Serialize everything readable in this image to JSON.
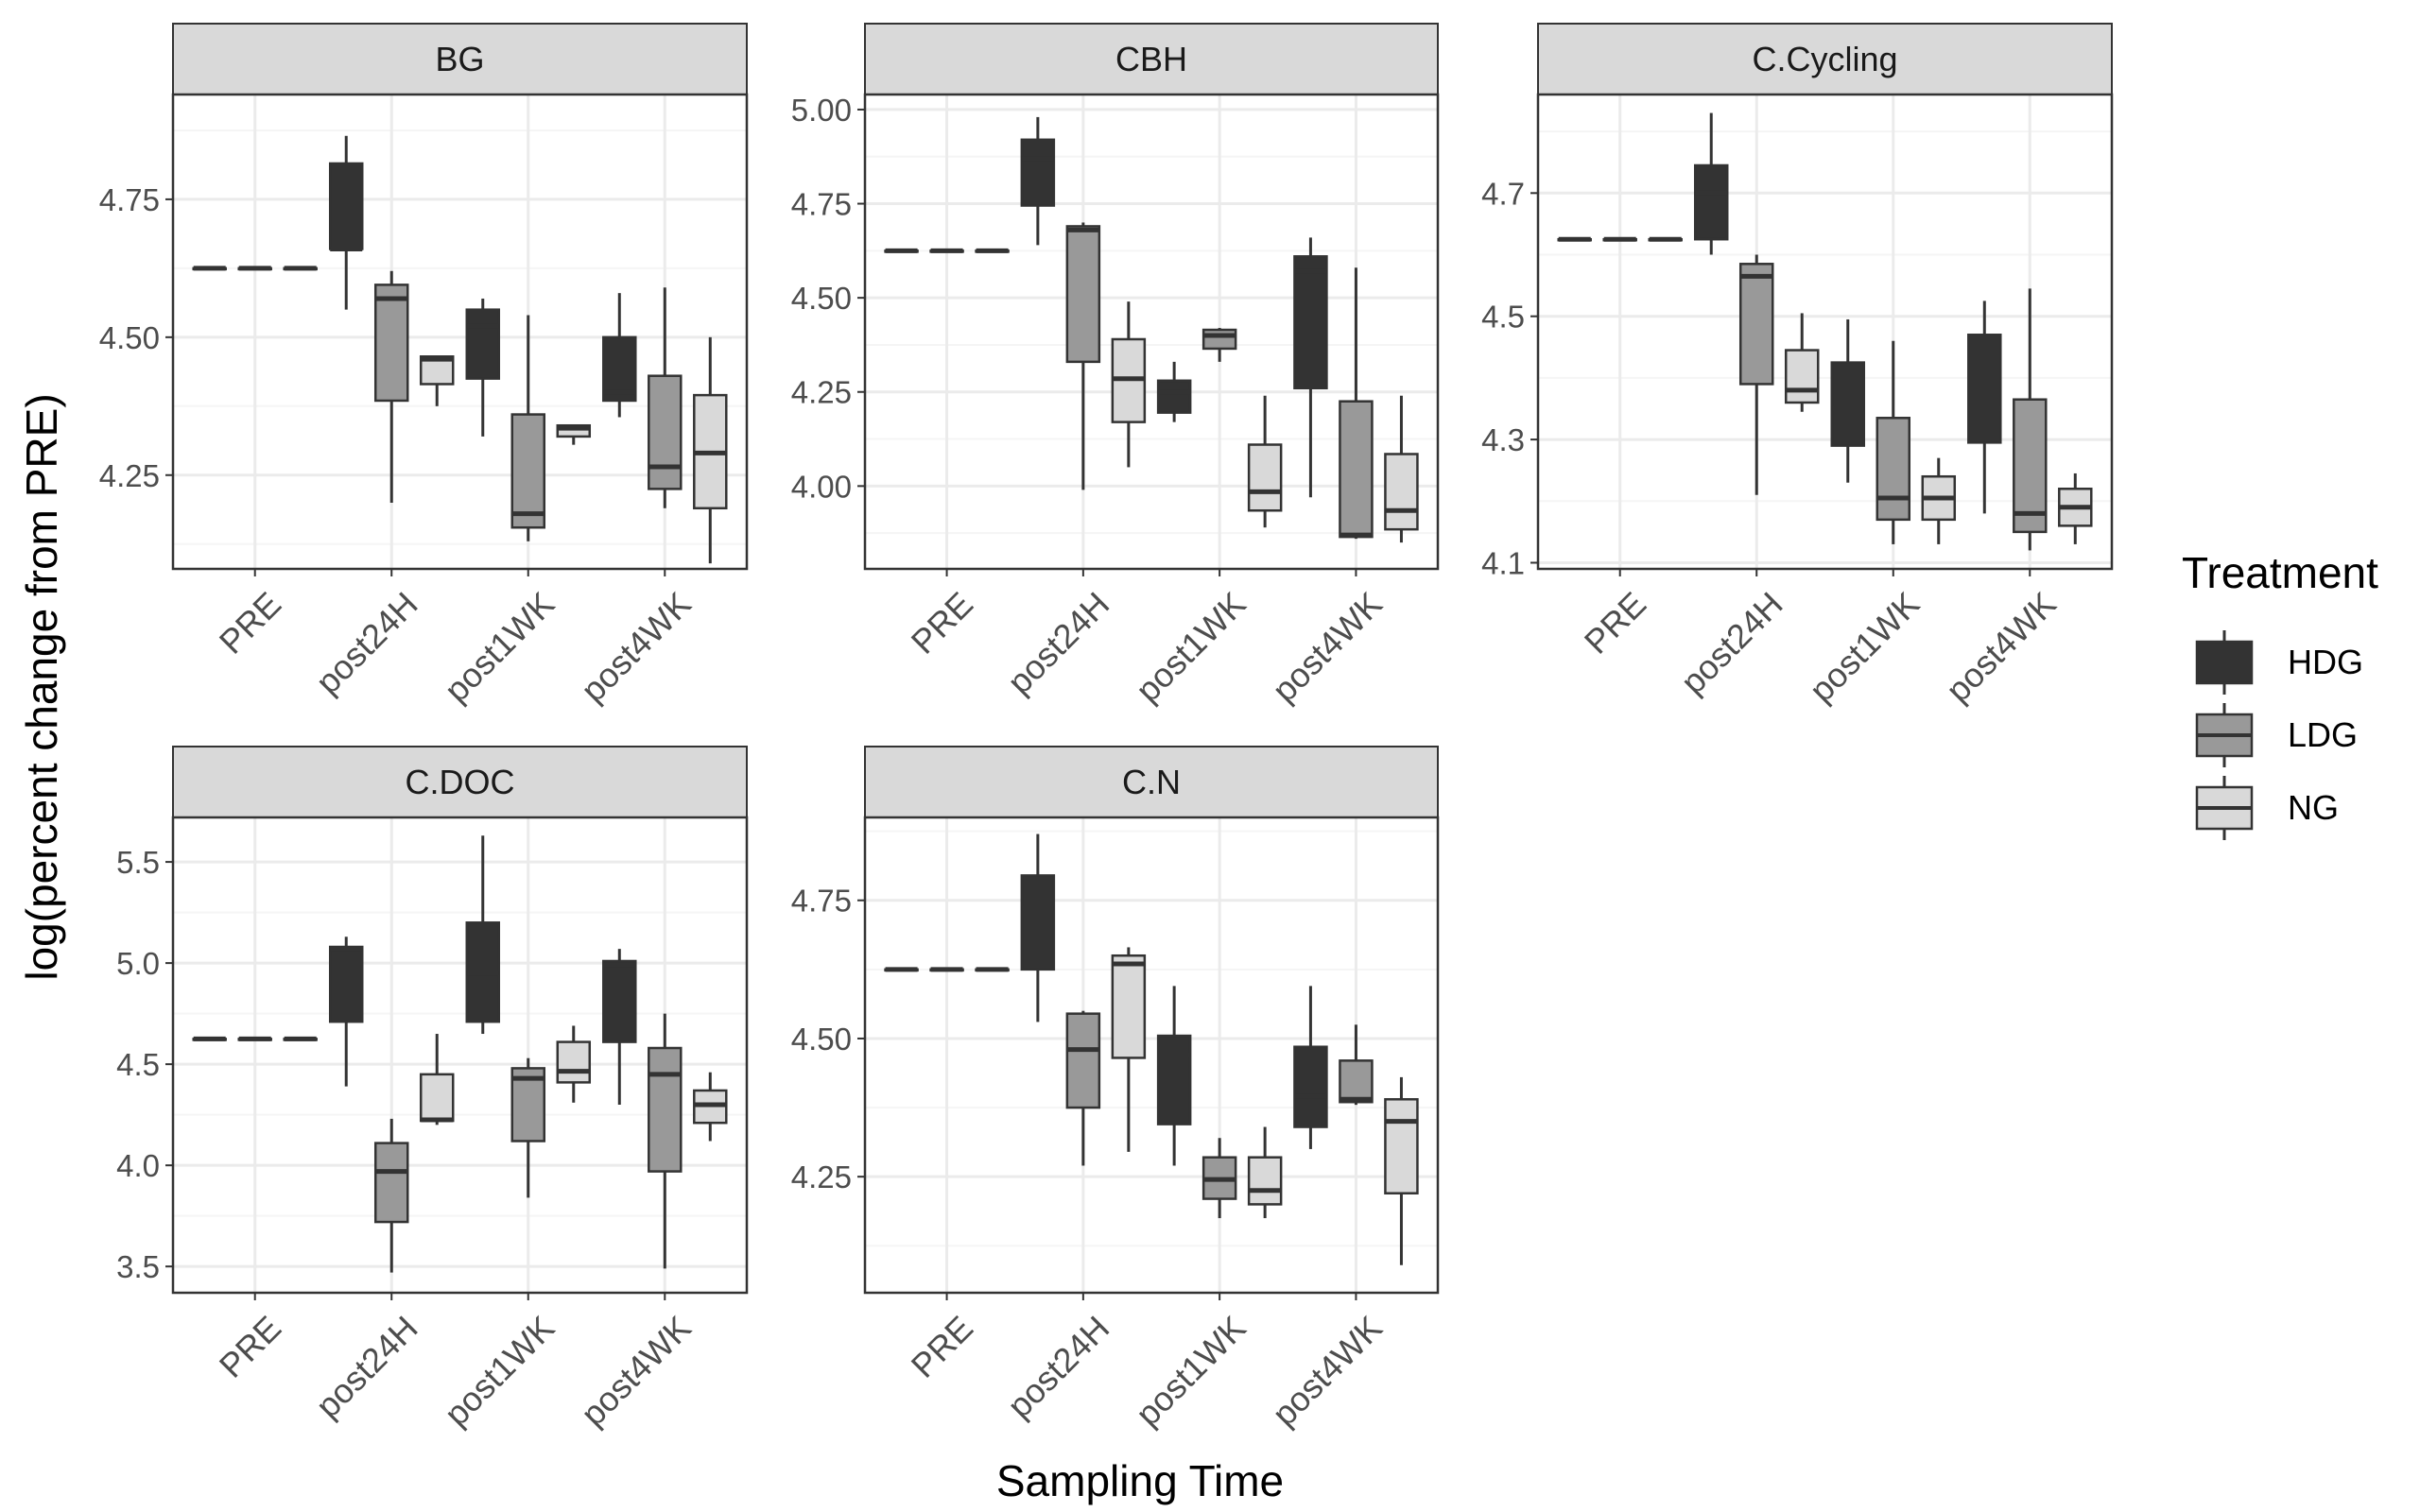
{
  "figure": {
    "xlabel": "Sampling Time",
    "ylabel": "log(percent change from PRE)",
    "legend": {
      "title": "Treatment",
      "placement": "right",
      "items": [
        {
          "name": "HDG",
          "color": "#333333"
        },
        {
          "name": "LDG",
          "color": "#999999"
        },
        {
          "name": "NG",
          "color": "#d9d9d9"
        }
      ]
    },
    "colors": {
      "strip_bg": "#d9d9d9",
      "grid_major": "#ebebeb",
      "grid_minor": "#f5f5f5",
      "axis_text": "#4d4d4d",
      "line": "#333333"
    }
  },
  "chart_data": [
    {
      "type": "box",
      "facet": "BG",
      "categories": [
        "PRE",
        "post24H",
        "post1WK",
        "post4WK"
      ],
      "ylim": [
        4.08,
        4.94
      ],
      "yticks": [
        4.25,
        4.5,
        4.75
      ],
      "ytick_labels": [
        "4.25",
        "4.50",
        "4.75"
      ],
      "series": [
        {
          "name": "HDG",
          "boxes": [
            [
              4.625,
              4.625,
              4.625,
              4.625,
              4.625
            ],
            [
              4.55,
              4.66,
              4.66,
              4.815,
              4.865
            ],
            [
              4.32,
              4.425,
              4.52,
              4.55,
              4.57
            ],
            [
              4.355,
              4.385,
              4.4,
              4.5,
              4.58
            ]
          ]
        },
        {
          "name": "LDG",
          "boxes": [
            [
              4.625,
              4.625,
              4.625,
              4.625,
              4.625
            ],
            [
              4.2,
              4.385,
              4.57,
              4.595,
              4.62
            ],
            [
              4.13,
              4.155,
              4.18,
              4.36,
              4.54
            ],
            [
              4.19,
              4.225,
              4.265,
              4.43,
              4.59
            ]
          ]
        },
        {
          "name": "NG",
          "boxes": [
            [
              4.625,
              4.625,
              4.625,
              4.625,
              4.625
            ],
            [
              4.375,
              4.415,
              4.46,
              4.465,
              4.46
            ],
            [
              4.305,
              4.32,
              4.335,
              4.34,
              4.34
            ],
            [
              4.09,
              4.19,
              4.29,
              4.395,
              4.5
            ]
          ]
        }
      ]
    },
    {
      "type": "box",
      "facet": "CBH",
      "categories": [
        "PRE",
        "post24H",
        "post1WK",
        "post4WK"
      ],
      "ylim": [
        3.78,
        5.04
      ],
      "yticks": [
        4.0,
        4.25,
        4.5,
        4.75,
        5.0
      ],
      "ytick_labels": [
        "4.00",
        "4.25",
        "4.50",
        "4.75",
        "5.00"
      ],
      "series": [
        {
          "name": "HDG",
          "boxes": [
            [
              4.625,
              4.625,
              4.625,
              4.625,
              4.625
            ],
            [
              4.64,
              4.745,
              4.87,
              4.92,
              4.98
            ],
            [
              4.17,
              4.195,
              4.25,
              4.28,
              4.33
            ],
            [
              3.97,
              4.26,
              4.57,
              4.61,
              4.66
            ]
          ]
        },
        {
          "name": "LDG",
          "boxes": [
            [
              4.625,
              4.625,
              4.625,
              4.625,
              4.625
            ],
            [
              3.99,
              4.33,
              4.68,
              4.69,
              4.7
            ],
            [
              4.33,
              4.365,
              4.4,
              4.415,
              4.42
            ],
            [
              3.86,
              3.865,
              3.87,
              4.225,
              4.58
            ]
          ]
        },
        {
          "name": "NG",
          "boxes": [
            [
              4.625,
              4.625,
              4.625,
              4.625,
              4.625
            ],
            [
              4.05,
              4.17,
              4.285,
              4.39,
              4.49
            ],
            [
              3.89,
              3.935,
              3.985,
              4.11,
              4.24
            ],
            [
              3.85,
              3.885,
              3.935,
              4.085,
              4.24
            ]
          ]
        }
      ]
    },
    {
      "type": "box",
      "facet": "C.Cycling",
      "categories": [
        "PRE",
        "post24H",
        "post1WK",
        "post4WK"
      ],
      "ylim": [
        4.09,
        4.86
      ],
      "yticks": [
        4.1,
        4.3,
        4.5,
        4.7
      ],
      "ytick_labels": [
        "4.1",
        "4.3",
        "4.5",
        "4.7"
      ],
      "series": [
        {
          "name": "HDG",
          "boxes": [
            [
              4.625,
              4.625,
              4.625,
              4.625,
              4.625
            ],
            [
              4.6,
              4.625,
              4.7,
              4.745,
              4.83
            ],
            [
              4.23,
              4.29,
              4.35,
              4.425,
              4.495
            ],
            [
              4.18,
              4.295,
              4.35,
              4.47,
              4.525
            ]
          ]
        },
        {
          "name": "LDG",
          "boxes": [
            [
              4.625,
              4.625,
              4.625,
              4.625,
              4.625
            ],
            [
              4.21,
              4.39,
              4.565,
              4.585,
              4.6
            ],
            [
              4.13,
              4.17,
              4.205,
              4.335,
              4.46
            ],
            [
              4.12,
              4.15,
              4.18,
              4.365,
              4.545
            ]
          ]
        },
        {
          "name": "NG",
          "boxes": [
            [
              4.625,
              4.625,
              4.625,
              4.625,
              4.625
            ],
            [
              4.345,
              4.36,
              4.38,
              4.445,
              4.505
            ],
            [
              4.13,
              4.17,
              4.205,
              4.24,
              4.27
            ],
            [
              4.13,
              4.16,
              4.19,
              4.22,
              4.245
            ]
          ]
        }
      ]
    },
    {
      "type": "box",
      "facet": "C.DOC",
      "categories": [
        "PRE",
        "post24H",
        "post1WK",
        "post4WK"
      ],
      "ylim": [
        3.37,
        5.72
      ],
      "yticks": [
        3.5,
        4.0,
        4.5,
        5.0,
        5.5
      ],
      "ytick_labels": [
        "3.5",
        "4.0",
        "4.5",
        "5.0",
        "5.5"
      ],
      "series": [
        {
          "name": "HDG",
          "boxes": [
            [
              4.625,
              4.625,
              4.625,
              4.625,
              4.625
            ],
            [
              4.39,
              4.71,
              5.07,
              5.08,
              5.13
            ],
            [
              4.65,
              4.71,
              4.95,
              5.2,
              5.63
            ],
            [
              4.3,
              4.61,
              4.99,
              5.01,
              5.07
            ]
          ]
        },
        {
          "name": "LDG",
          "boxes": [
            [
              4.625,
              4.625,
              4.625,
              4.625,
              4.625
            ],
            [
              3.47,
              3.72,
              3.97,
              4.11,
              4.23
            ],
            [
              3.84,
              4.12,
              4.43,
              4.48,
              4.53
            ],
            [
              3.49,
              3.97,
              4.45,
              4.58,
              4.75
            ]
          ]
        },
        {
          "name": "NG",
          "boxes": [
            [
              4.625,
              4.625,
              4.625,
              4.625,
              4.625
            ],
            [
              4.2,
              4.22,
              4.225,
              4.45,
              4.65
            ],
            [
              4.31,
              4.41,
              4.465,
              4.61,
              4.69
            ],
            [
              4.12,
              4.21,
              4.3,
              4.37,
              4.46
            ]
          ]
        }
      ]
    },
    {
      "type": "box",
      "facet": "C.N",
      "categories": [
        "PRE",
        "post24H",
        "post1WK",
        "post4WK"
      ],
      "ylim": [
        4.04,
        4.9
      ],
      "yticks": [
        4.25,
        4.5,
        4.75
      ],
      "ytick_labels": [
        "4.25",
        "4.50",
        "4.75"
      ],
      "series": [
        {
          "name": "HDG",
          "boxes": [
            [
              4.625,
              4.625,
              4.625,
              4.625,
              4.625
            ],
            [
              4.53,
              4.625,
              4.735,
              4.795,
              4.87
            ],
            [
              4.27,
              4.345,
              4.47,
              4.505,
              4.595
            ],
            [
              4.3,
              4.34,
              4.395,
              4.485,
              4.595
            ]
          ]
        },
        {
          "name": "LDG",
          "boxes": [
            [
              4.625,
              4.625,
              4.625,
              4.625,
              4.625
            ],
            [
              4.27,
              4.375,
              4.48,
              4.545,
              4.55
            ],
            [
              4.175,
              4.21,
              4.245,
              4.285,
              4.32
            ],
            [
              4.38,
              4.385,
              4.39,
              4.46,
              4.525
            ]
          ]
        },
        {
          "name": "NG",
          "boxes": [
            [
              4.625,
              4.625,
              4.625,
              4.625,
              4.625
            ],
            [
              4.295,
              4.465,
              4.635,
              4.65,
              4.665
            ],
            [
              4.175,
              4.2,
              4.225,
              4.285,
              4.34
            ],
            [
              4.09,
              4.22,
              4.35,
              4.39,
              4.43
            ]
          ]
        }
      ]
    }
  ]
}
